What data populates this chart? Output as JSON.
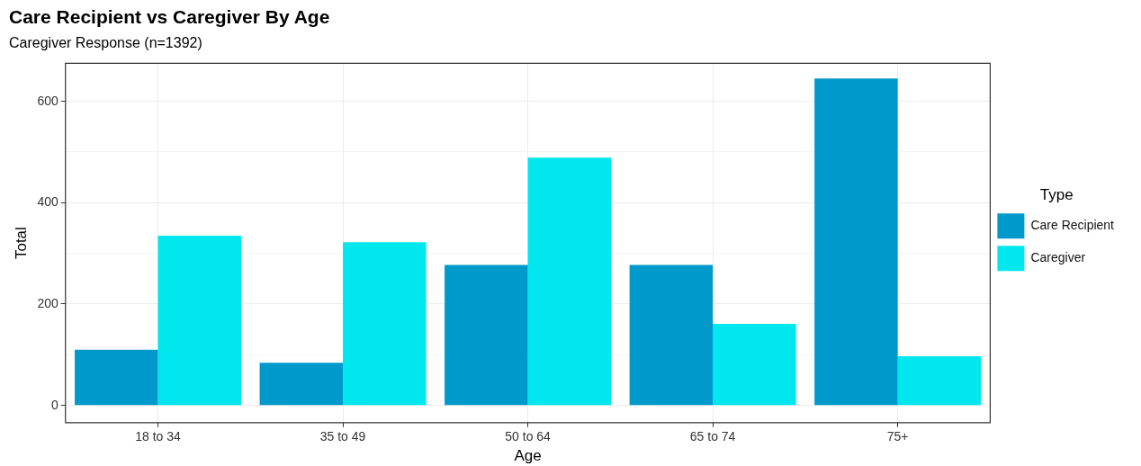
{
  "chart_data": {
    "type": "bar",
    "title": "Care Recipient vs Caregiver By Age",
    "subtitle": "Caregiver Response (n=1392)",
    "xlabel": "Age",
    "ylabel": "Total",
    "legend_title": "Type",
    "categories": [
      "18 to 34",
      "35 to 49",
      "50 to 64",
      "65 to 74",
      "75+"
    ],
    "series": [
      {
        "name": "Care Recipient",
        "color": "#0099cc",
        "values": [
          110,
          84,
          277,
          277,
          645
        ]
      },
      {
        "name": "Caregiver",
        "color": "#00e8ee",
        "values": [
          335,
          322,
          489,
          161,
          97
        ]
      }
    ],
    "ylim": [
      -34,
      675
    ],
    "yticks": [
      0,
      {
        "value": 100,
        "label": null
      },
      200,
      {
        "value": 300,
        "label": null
      },
      400,
      {
        "value": 500,
        "label": null
      },
      600
    ],
    "grid": true,
    "legend": "right"
  }
}
